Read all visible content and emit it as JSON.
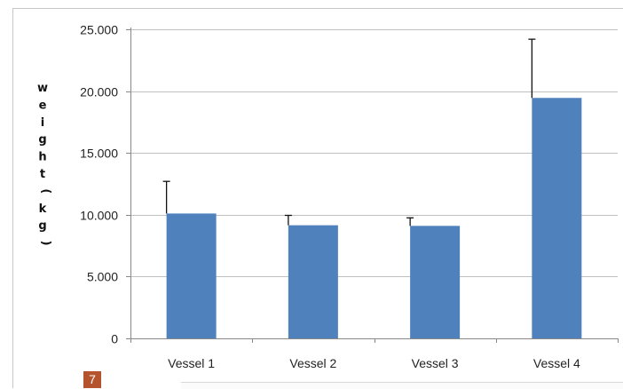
{
  "chart_data": {
    "type": "bar",
    "categories": [
      "Vessel 1",
      "Vessel 2",
      "Vessel 3",
      "Vessel 4"
    ],
    "values": [
      10.1,
      9.15,
      9.1,
      19.45
    ],
    "error_upper": [
      12.7,
      9.95,
      9.75,
      24.2
    ],
    "ylim": [
      0,
      25
    ],
    "yticks": [
      0,
      5,
      10,
      15,
      20,
      25
    ],
    "ytick_labels": [
      "0",
      "5.000",
      "10.000",
      "15.000",
      "20.000",
      "25.000"
    ],
    "ylabel_chars": [
      "w",
      "e",
      "i",
      "g",
      "h",
      "t",
      "(",
      "k",
      "g",
      ")"
    ],
    "grid": true,
    "bar_color": "#4f81bd"
  },
  "page_badge": "7"
}
